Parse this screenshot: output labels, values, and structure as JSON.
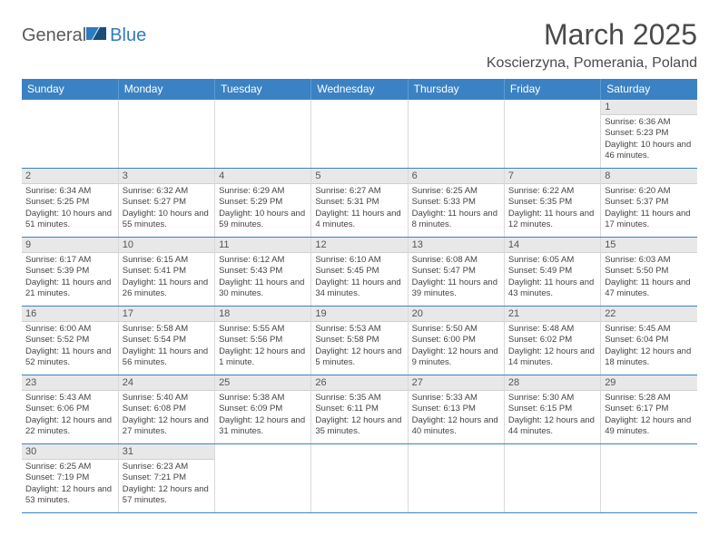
{
  "brand": {
    "part1": "General",
    "part2": "Blue"
  },
  "title": "March 2025",
  "location": "Koscierzyna, Pomerania, Poland",
  "colors": {
    "headerBg": "#3b82c4",
    "headerText": "#ffffff",
    "dayBg": "#e8e8e8",
    "rowBorder": "#3b82c4",
    "cellBorder": "#d9d9d9",
    "brandGray": "#5a5a5a",
    "brandBlue": "#2e7bc0"
  },
  "weekdays": [
    "Sunday",
    "Monday",
    "Tuesday",
    "Wednesday",
    "Thursday",
    "Friday",
    "Saturday"
  ],
  "weeks": [
    [
      {
        "day": "",
        "sunrise": "",
        "sunset": "",
        "daylight": ""
      },
      {
        "day": "",
        "sunrise": "",
        "sunset": "",
        "daylight": ""
      },
      {
        "day": "",
        "sunrise": "",
        "sunset": "",
        "daylight": ""
      },
      {
        "day": "",
        "sunrise": "",
        "sunset": "",
        "daylight": ""
      },
      {
        "day": "",
        "sunrise": "",
        "sunset": "",
        "daylight": ""
      },
      {
        "day": "",
        "sunrise": "",
        "sunset": "",
        "daylight": ""
      },
      {
        "day": "1",
        "sunrise": "Sunrise: 6:36 AM",
        "sunset": "Sunset: 5:23 PM",
        "daylight": "Daylight: 10 hours and 46 minutes."
      }
    ],
    [
      {
        "day": "2",
        "sunrise": "Sunrise: 6:34 AM",
        "sunset": "Sunset: 5:25 PM",
        "daylight": "Daylight: 10 hours and 51 minutes."
      },
      {
        "day": "3",
        "sunrise": "Sunrise: 6:32 AM",
        "sunset": "Sunset: 5:27 PM",
        "daylight": "Daylight: 10 hours and 55 minutes."
      },
      {
        "day": "4",
        "sunrise": "Sunrise: 6:29 AM",
        "sunset": "Sunset: 5:29 PM",
        "daylight": "Daylight: 10 hours and 59 minutes."
      },
      {
        "day": "5",
        "sunrise": "Sunrise: 6:27 AM",
        "sunset": "Sunset: 5:31 PM",
        "daylight": "Daylight: 11 hours and 4 minutes."
      },
      {
        "day": "6",
        "sunrise": "Sunrise: 6:25 AM",
        "sunset": "Sunset: 5:33 PM",
        "daylight": "Daylight: 11 hours and 8 minutes."
      },
      {
        "day": "7",
        "sunrise": "Sunrise: 6:22 AM",
        "sunset": "Sunset: 5:35 PM",
        "daylight": "Daylight: 11 hours and 12 minutes."
      },
      {
        "day": "8",
        "sunrise": "Sunrise: 6:20 AM",
        "sunset": "Sunset: 5:37 PM",
        "daylight": "Daylight: 11 hours and 17 minutes."
      }
    ],
    [
      {
        "day": "9",
        "sunrise": "Sunrise: 6:17 AM",
        "sunset": "Sunset: 5:39 PM",
        "daylight": "Daylight: 11 hours and 21 minutes."
      },
      {
        "day": "10",
        "sunrise": "Sunrise: 6:15 AM",
        "sunset": "Sunset: 5:41 PM",
        "daylight": "Daylight: 11 hours and 26 minutes."
      },
      {
        "day": "11",
        "sunrise": "Sunrise: 6:12 AM",
        "sunset": "Sunset: 5:43 PM",
        "daylight": "Daylight: 11 hours and 30 minutes."
      },
      {
        "day": "12",
        "sunrise": "Sunrise: 6:10 AM",
        "sunset": "Sunset: 5:45 PM",
        "daylight": "Daylight: 11 hours and 34 minutes."
      },
      {
        "day": "13",
        "sunrise": "Sunrise: 6:08 AM",
        "sunset": "Sunset: 5:47 PM",
        "daylight": "Daylight: 11 hours and 39 minutes."
      },
      {
        "day": "14",
        "sunrise": "Sunrise: 6:05 AM",
        "sunset": "Sunset: 5:49 PM",
        "daylight": "Daylight: 11 hours and 43 minutes."
      },
      {
        "day": "15",
        "sunrise": "Sunrise: 6:03 AM",
        "sunset": "Sunset: 5:50 PM",
        "daylight": "Daylight: 11 hours and 47 minutes."
      }
    ],
    [
      {
        "day": "16",
        "sunrise": "Sunrise: 6:00 AM",
        "sunset": "Sunset: 5:52 PM",
        "daylight": "Daylight: 11 hours and 52 minutes."
      },
      {
        "day": "17",
        "sunrise": "Sunrise: 5:58 AM",
        "sunset": "Sunset: 5:54 PM",
        "daylight": "Daylight: 11 hours and 56 minutes."
      },
      {
        "day": "18",
        "sunrise": "Sunrise: 5:55 AM",
        "sunset": "Sunset: 5:56 PM",
        "daylight": "Daylight: 12 hours and 1 minute."
      },
      {
        "day": "19",
        "sunrise": "Sunrise: 5:53 AM",
        "sunset": "Sunset: 5:58 PM",
        "daylight": "Daylight: 12 hours and 5 minutes."
      },
      {
        "day": "20",
        "sunrise": "Sunrise: 5:50 AM",
        "sunset": "Sunset: 6:00 PM",
        "daylight": "Daylight: 12 hours and 9 minutes."
      },
      {
        "day": "21",
        "sunrise": "Sunrise: 5:48 AM",
        "sunset": "Sunset: 6:02 PM",
        "daylight": "Daylight: 12 hours and 14 minutes."
      },
      {
        "day": "22",
        "sunrise": "Sunrise: 5:45 AM",
        "sunset": "Sunset: 6:04 PM",
        "daylight": "Daylight: 12 hours and 18 minutes."
      }
    ],
    [
      {
        "day": "23",
        "sunrise": "Sunrise: 5:43 AM",
        "sunset": "Sunset: 6:06 PM",
        "daylight": "Daylight: 12 hours and 22 minutes."
      },
      {
        "day": "24",
        "sunrise": "Sunrise: 5:40 AM",
        "sunset": "Sunset: 6:08 PM",
        "daylight": "Daylight: 12 hours and 27 minutes."
      },
      {
        "day": "25",
        "sunrise": "Sunrise: 5:38 AM",
        "sunset": "Sunset: 6:09 PM",
        "daylight": "Daylight: 12 hours and 31 minutes."
      },
      {
        "day": "26",
        "sunrise": "Sunrise: 5:35 AM",
        "sunset": "Sunset: 6:11 PM",
        "daylight": "Daylight: 12 hours and 35 minutes."
      },
      {
        "day": "27",
        "sunrise": "Sunrise: 5:33 AM",
        "sunset": "Sunset: 6:13 PM",
        "daylight": "Daylight: 12 hours and 40 minutes."
      },
      {
        "day": "28",
        "sunrise": "Sunrise: 5:30 AM",
        "sunset": "Sunset: 6:15 PM",
        "daylight": "Daylight: 12 hours and 44 minutes."
      },
      {
        "day": "29",
        "sunrise": "Sunrise: 5:28 AM",
        "sunset": "Sunset: 6:17 PM",
        "daylight": "Daylight: 12 hours and 49 minutes."
      }
    ],
    [
      {
        "day": "30",
        "sunrise": "Sunrise: 6:25 AM",
        "sunset": "Sunset: 7:19 PM",
        "daylight": "Daylight: 12 hours and 53 minutes."
      },
      {
        "day": "31",
        "sunrise": "Sunrise: 6:23 AM",
        "sunset": "Sunset: 7:21 PM",
        "daylight": "Daylight: 12 hours and 57 minutes."
      },
      {
        "day": "",
        "sunrise": "",
        "sunset": "",
        "daylight": ""
      },
      {
        "day": "",
        "sunrise": "",
        "sunset": "",
        "daylight": ""
      },
      {
        "day": "",
        "sunrise": "",
        "sunset": "",
        "daylight": ""
      },
      {
        "day": "",
        "sunrise": "",
        "sunset": "",
        "daylight": ""
      },
      {
        "day": "",
        "sunrise": "",
        "sunset": "",
        "daylight": ""
      }
    ]
  ]
}
